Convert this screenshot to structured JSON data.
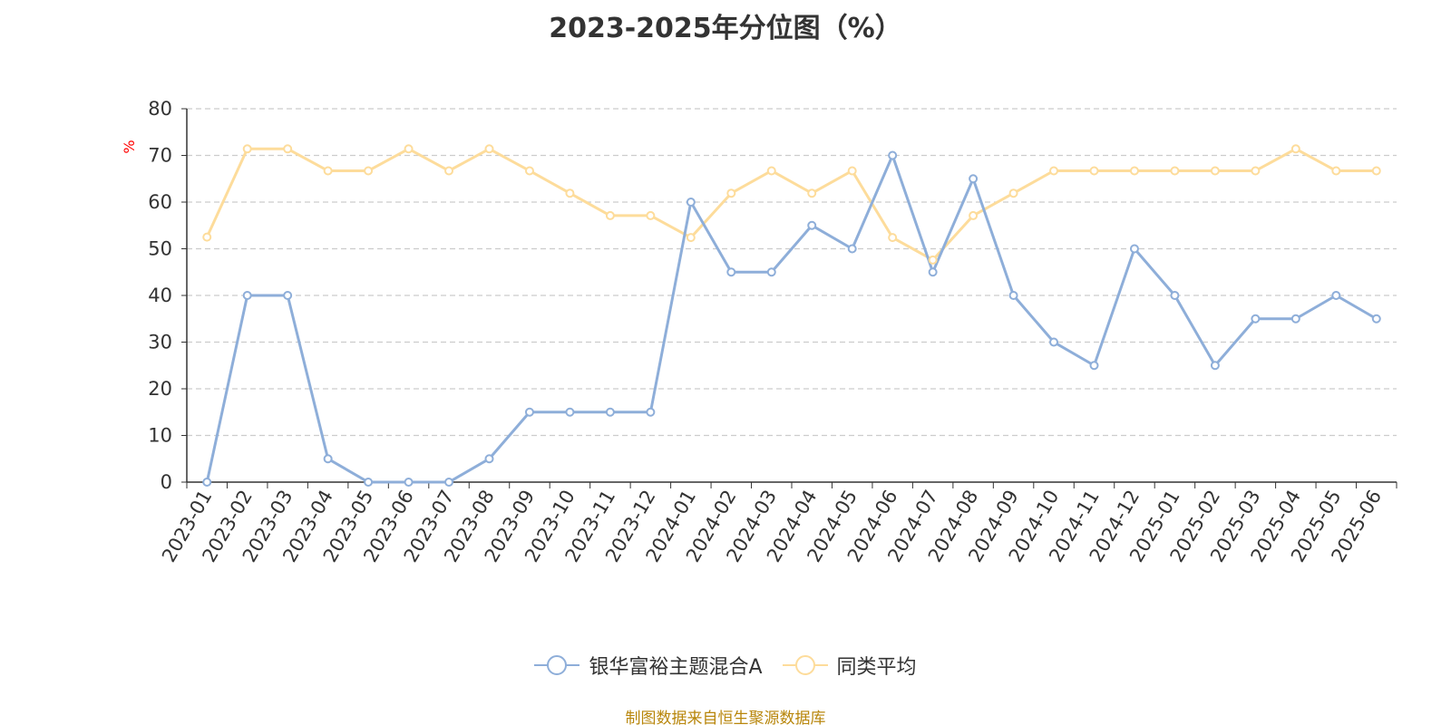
{
  "chart_data": {
    "type": "line",
    "title": "2023-2025年分位图（%）",
    "ylabel": "%",
    "xlabel": "",
    "ylim": [
      0,
      80
    ],
    "yticks": [
      0,
      10,
      20,
      30,
      40,
      50,
      60,
      70,
      80
    ],
    "grid": true,
    "legend_position": "bottom",
    "categories": [
      "2023-01",
      "2023-02",
      "2023-03",
      "2023-04",
      "2023-05",
      "2023-06",
      "2023-07",
      "2023-08",
      "2023-09",
      "2023-10",
      "2023-11",
      "2023-12",
      "2024-01",
      "2024-02",
      "2024-03",
      "2024-04",
      "2024-05",
      "2024-06",
      "2024-07",
      "2024-08",
      "2024-09",
      "2024-10",
      "2024-11",
      "2024-12",
      "2025-01",
      "2025-02",
      "2025-03",
      "2025-04",
      "2025-05",
      "2025-06"
    ],
    "series": [
      {
        "name": "银华富裕主题混合A",
        "color": "#8eaed9",
        "values": [
          0,
          40,
          40,
          5,
          0,
          0,
          0,
          5,
          15,
          15,
          15,
          15,
          60,
          45,
          45,
          55,
          50,
          70,
          45,
          65,
          40,
          30,
          25,
          50,
          40,
          25,
          35,
          35,
          40,
          35
        ]
      },
      {
        "name": "同类平均",
        "color": "#fddc9b",
        "values": [
          52.5,
          71.4,
          71.4,
          66.7,
          66.7,
          71.4,
          66.7,
          71.4,
          66.7,
          61.9,
          57.1,
          57.1,
          52.4,
          61.9,
          66.7,
          61.9,
          66.7,
          52.4,
          47.6,
          57.1,
          61.9,
          66.7,
          66.7,
          66.7,
          66.7,
          66.7,
          66.7,
          71.4,
          66.7,
          66.7
        ]
      }
    ]
  },
  "source_note": "制图数据来自恒生聚源数据库"
}
